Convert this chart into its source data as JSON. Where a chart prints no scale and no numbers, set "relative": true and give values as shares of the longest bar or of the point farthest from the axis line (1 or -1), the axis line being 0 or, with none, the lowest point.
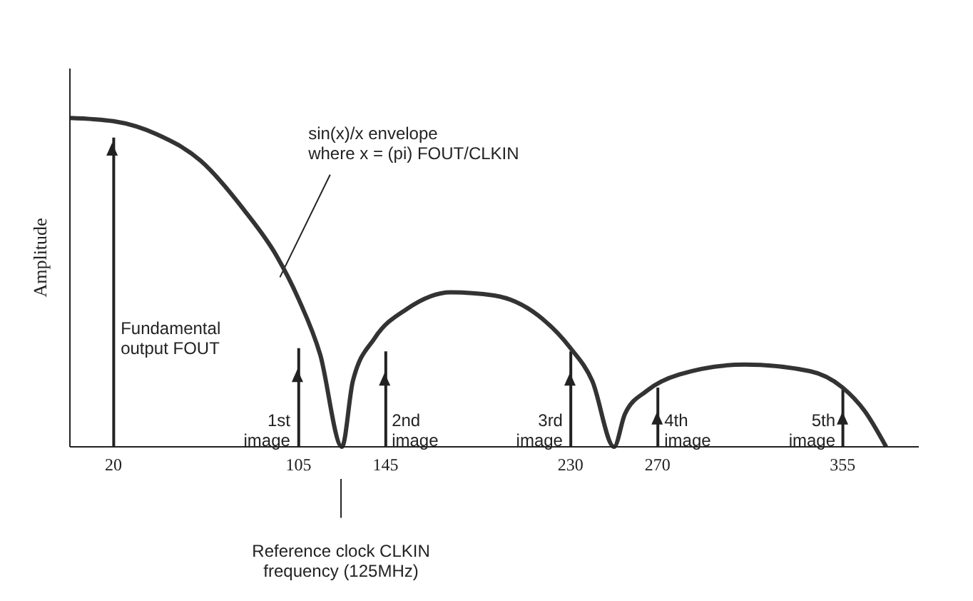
{
  "chart_data": {
    "type": "line",
    "relative": true,
    "ylabel": "Amplitude",
    "xlim": [
      0,
      390
    ],
    "xticks": [
      20,
      105,
      145,
      230,
      270,
      355
    ],
    "series": [
      {
        "color": "#333333",
        "x": [
          0,
          20,
          40,
          60,
          80,
          95,
          105,
          115,
          125,
          130,
          140,
          155,
          175,
          195,
          215,
          230,
          240,
          250,
          255,
          265,
          280,
          310,
          340,
          355,
          365,
          375
        ],
        "values": [
          1,
          0.99,
          0.95,
          0.87,
          0.72,
          0.58,
          0.45,
          0.28,
          0,
          0.2,
          0.33,
          0.42,
          0.47,
          0.46,
          0.4,
          0.3,
          0.2,
          0,
          0.1,
          0.17,
          0.22,
          0.25,
          0.23,
          0.18,
          0.11,
          0
        ]
      },
      {
        "type": "bar",
        "color": "#222222",
        "x": [
          20,
          105,
          145,
          230,
          270,
          355
        ],
        "values": [
          0.94,
          0.3,
          0.29,
          0.29,
          0.18,
          0.18
        ]
      }
    ],
    "annotations": [
      "sin(x)/x envelope\nwhere x = (pi) FOUT/CLKIN",
      "Fundamental\noutput FOUT",
      "1st\nimage",
      "2nd\nimage",
      "3rd\nimage",
      "4th\nimage",
      "5th\nimage",
      "Reference clock CLKIN\nfrequency (125MHz)"
    ]
  }
}
